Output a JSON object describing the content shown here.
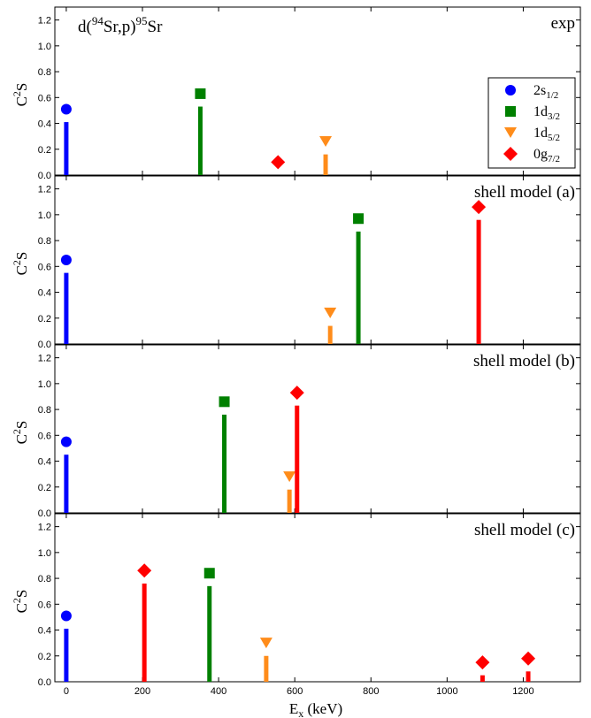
{
  "chart_data": {
    "type": "bar",
    "xlabel_main": "E",
    "xlabel_sub": "x",
    "xlabel_unit": " (keV)",
    "ylabel_main": "C",
    "ylabel_sup": "2",
    "ylabel_end": "S",
    "xlim": [
      -30,
      1350
    ],
    "ylim": [
      0,
      1.3
    ],
    "x_ticks": [
      0,
      200,
      400,
      600,
      800,
      1000,
      1200
    ],
    "y_ticks": [
      0.0,
      0.2,
      0.4,
      0.6,
      0.8,
      1.0,
      1.2
    ],
    "reaction_title": {
      "p1": "d(",
      "sup1": "94",
      "p2": "Sr,p)",
      "sup2": "95",
      "p3": "Sr"
    },
    "legend": {
      "position": "right, top panel",
      "entries": [
        {
          "key": "s",
          "main": "2s",
          "sub": "1/2",
          "color": "#0000ff",
          "marker": "circle"
        },
        {
          "key": "d3",
          "main": "1d",
          "sub": "3/2",
          "color": "#008000",
          "marker": "square"
        },
        {
          "key": "d5",
          "main": "1d",
          "sub": "5/2",
          "color": "#ff8c1a",
          "marker": "triangle-down"
        },
        {
          "key": "g",
          "main": "0g",
          "sub": "7/2",
          "color": "#ff0000",
          "marker": "diamond"
        }
      ]
    },
    "panels": [
      {
        "label": "exp",
        "points": [
          {
            "orbital": "s",
            "x": 0,
            "y": 0.51
          },
          {
            "orbital": "d3",
            "x": 352,
            "y": 0.63
          },
          {
            "orbital": "g",
            "x": 556,
            "y": 0.1
          },
          {
            "orbital": "d5",
            "x": 681,
            "y": 0.26
          }
        ]
      },
      {
        "label": "shell model (a)",
        "points": [
          {
            "orbital": "s",
            "x": 0,
            "y": 0.65
          },
          {
            "orbital": "d5",
            "x": 693,
            "y": 0.24
          },
          {
            "orbital": "d3",
            "x": 767,
            "y": 0.97
          },
          {
            "orbital": "g",
            "x": 1083,
            "y": 1.06
          }
        ]
      },
      {
        "label": "shell model (b)",
        "points": [
          {
            "orbital": "s",
            "x": 0,
            "y": 0.55
          },
          {
            "orbital": "d3",
            "x": 415,
            "y": 0.86
          },
          {
            "orbital": "d5",
            "x": 586,
            "y": 0.28
          },
          {
            "orbital": "g",
            "x": 606,
            "y": 0.93
          }
        ]
      },
      {
        "label": "shell model (c)",
        "points": [
          {
            "orbital": "s",
            "x": 0,
            "y": 0.51
          },
          {
            "orbital": "g",
            "x": 205,
            "y": 0.86
          },
          {
            "orbital": "d3",
            "x": 376,
            "y": 0.84
          },
          {
            "orbital": "d5",
            "x": 525,
            "y": 0.3
          },
          {
            "orbital": "g",
            "x": 1093,
            "y": 0.15
          },
          {
            "orbital": "g",
            "x": 1213,
            "y": 0.18
          }
        ]
      }
    ]
  }
}
